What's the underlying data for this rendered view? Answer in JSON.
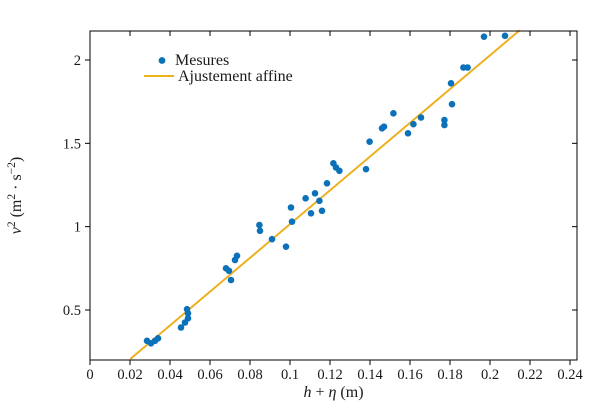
{
  "figure": {
    "background": "#ffffff"
  },
  "chart_data": {
    "type": "scatter",
    "title": "",
    "xlabel": "h + η (m)",
    "ylabel": "v² (m² · s⁻²)",
    "xlabel_rich": [
      {
        "t": "h",
        "s": "i"
      },
      {
        "t": " + ",
        "s": "n"
      },
      {
        "t": "η",
        "s": "i"
      },
      {
        "t": " (m)",
        "s": "n"
      }
    ],
    "ylabel_rich": [
      {
        "t": "v",
        "s": "i"
      },
      {
        "t": "2",
        "s": "sup"
      },
      {
        "t": " (m",
        "s": "n"
      },
      {
        "t": "2",
        "s": "sup"
      },
      {
        "t": " · s",
        "s": "n"
      },
      {
        "t": "−2",
        "s": "sup"
      },
      {
        "t": ")",
        "s": "n"
      }
    ],
    "xlim": [
      0,
      0.2435
    ],
    "ylim": [
      0.2,
      2.174
    ],
    "grid": false,
    "axis_color": "#000000",
    "tick_label_color": "#1a1a1a",
    "x_ticks": {
      "values": [
        0,
        0.02,
        0.04,
        0.06,
        0.08,
        0.1,
        0.12,
        0.14,
        0.16,
        0.18,
        0.2,
        0.22,
        0.24
      ],
      "labels": [
        "0",
        "0.02",
        "0.04",
        "0.06",
        "0.08",
        "0.1",
        "0.12",
        "0.14",
        "0.16",
        "0.18",
        "0.2",
        "0.22",
        "0.24"
      ]
    },
    "y_ticks": {
      "values": [
        0.5,
        1,
        1.5,
        2
      ],
      "labels": [
        "0.5",
        "1",
        "1.5",
        "2"
      ]
    },
    "legend": {
      "position": "top-left-inside",
      "entries": [
        {
          "label": "Mesures",
          "marker": "dot",
          "color": "#0b72b9"
        },
        {
          "label": "Ajustement affine",
          "marker": "line",
          "color": "#edb120"
        }
      ]
    },
    "series": [
      {
        "name": "Mesures",
        "type": "scatter",
        "color": "#0b72b9",
        "marker_radius": 3.3,
        "points": [
          [
            0.0285,
            0.315
          ],
          [
            0.0305,
            0.3
          ],
          [
            0.0325,
            0.315
          ],
          [
            0.034,
            0.33
          ],
          [
            0.0455,
            0.395
          ],
          [
            0.0475,
            0.425
          ],
          [
            0.049,
            0.45
          ],
          [
            0.049,
            0.48
          ],
          [
            0.0485,
            0.505
          ],
          [
            0.068,
            0.75
          ],
          [
            0.0695,
            0.735
          ],
          [
            0.0705,
            0.68
          ],
          [
            0.0725,
            0.8
          ],
          [
            0.0735,
            0.825
          ],
          [
            0.0847,
            1.01
          ],
          [
            0.085,
            0.975
          ],
          [
            0.091,
            0.925
          ],
          [
            0.098,
            0.88
          ],
          [
            0.1005,
            1.115
          ],
          [
            0.101,
            1.03
          ],
          [
            0.1078,
            1.17
          ],
          [
            0.1105,
            1.08
          ],
          [
            0.1125,
            1.2
          ],
          [
            0.1147,
            1.155
          ],
          [
            0.116,
            1.095
          ],
          [
            0.1185,
            1.26
          ],
          [
            0.1217,
            1.38
          ],
          [
            0.123,
            1.355
          ],
          [
            0.1247,
            1.335
          ],
          [
            0.138,
            1.345
          ],
          [
            0.1398,
            1.51
          ],
          [
            0.146,
            1.59
          ],
          [
            0.147,
            1.6
          ],
          [
            0.1517,
            1.68
          ],
          [
            0.159,
            1.56
          ],
          [
            0.1617,
            1.615
          ],
          [
            0.1655,
            1.655
          ],
          [
            0.1772,
            1.64
          ],
          [
            0.1772,
            1.61
          ],
          [
            0.1805,
            1.86
          ],
          [
            0.181,
            1.735
          ],
          [
            0.1867,
            1.955
          ],
          [
            0.1888,
            1.955
          ],
          [
            0.197,
            2.14
          ],
          [
            0.2075,
            2.145
          ]
        ]
      },
      {
        "name": "Ajustement affine",
        "type": "line",
        "color": "#edb120",
        "width": 2,
        "points": [
          [
            0.0205,
            0.21
          ],
          [
            0.2145,
            2.175
          ]
        ]
      }
    ]
  }
}
